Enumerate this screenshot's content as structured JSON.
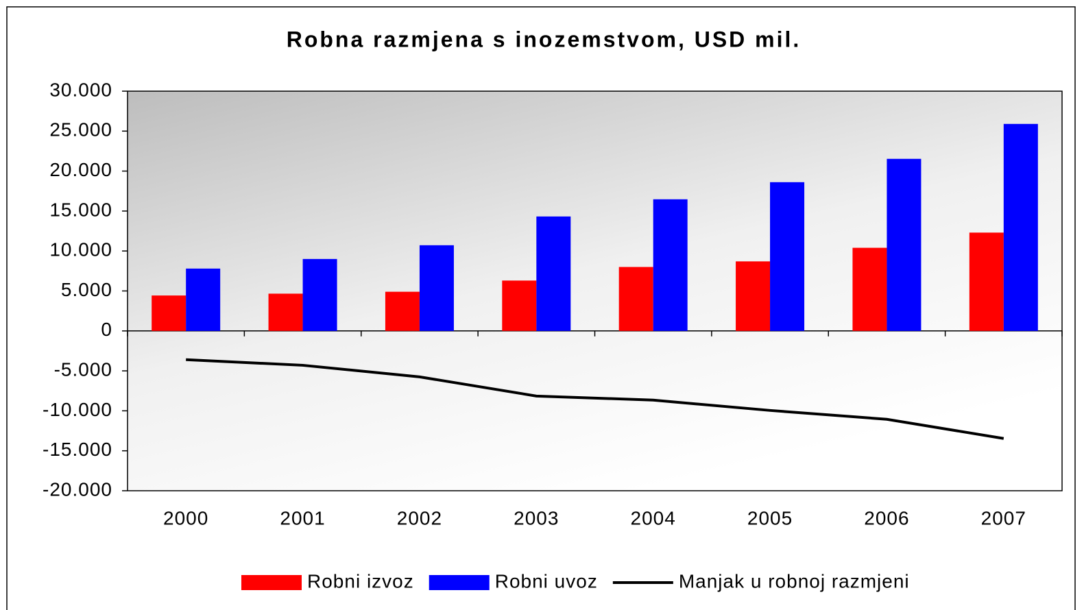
{
  "chart_data": {
    "type": "bar",
    "title": "Robna razmjena s inozemstvom, USD mil.",
    "categories": [
      "2000",
      "2001",
      "2002",
      "2003",
      "2004",
      "2005",
      "2006",
      "2007"
    ],
    "series": [
      {
        "name": "Robni izvoz",
        "color": "#ff0000",
        "type": "bar",
        "values": [
          4430,
          4660,
          4900,
          6300,
          8000,
          8700,
          10400,
          12300
        ]
      },
      {
        "name": "Robni uvoz",
        "color": "#0000ff",
        "type": "bar",
        "values": [
          7800,
          9000,
          10720,
          14320,
          16470,
          18610,
          21530,
          25900
        ]
      },
      {
        "name": "Manjak u robnoj razmjeni",
        "color": "#000000",
        "type": "line",
        "values": [
          -3600,
          -4300,
          -5750,
          -8150,
          -8660,
          -9950,
          -11060,
          -13460
        ]
      }
    ],
    "ylim": [
      -20000,
      30000
    ],
    "yticks": [
      {
        "value": -20000,
        "label": "-20.000"
      },
      {
        "value": -15000,
        "label": "-15.000"
      },
      {
        "value": -10000,
        "label": "-10.000"
      },
      {
        "value": -5000,
        "label": "-5.000"
      },
      0,
      {
        "value": 5000,
        "label": "5.000"
      },
      {
        "value": 10000,
        "label": "10.000"
      },
      {
        "value": 15000,
        "label": "15.000"
      },
      {
        "value": 20000,
        "label": "20.000"
      },
      {
        "value": 25000,
        "label": "25.000"
      },
      {
        "value": 30000,
        "label": "30.000"
      }
    ],
    "legend": "bottom"
  }
}
